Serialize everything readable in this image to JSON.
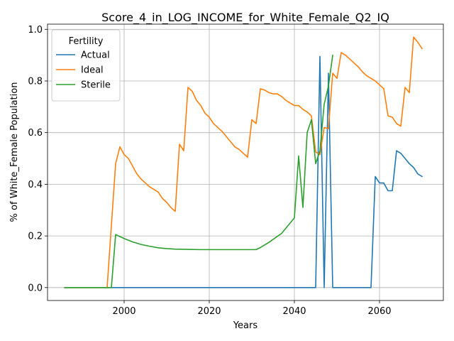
{
  "chart_data": {
    "type": "line",
    "title": "Score_4_in_LOG_INCOME_for_White_Female_Q2_IQ",
    "xlabel": "Years",
    "ylabel": "% of White_Female Population",
    "xlim": [
      1982,
      2075
    ],
    "ylim": [
      -0.05,
      1.02
    ],
    "xticks": [
      2000,
      2020,
      2040,
      2060
    ],
    "yticks": [
      0.0,
      0.2,
      0.4,
      0.6,
      0.8,
      1.0
    ],
    "xtick_labels": [
      "2000",
      "2020",
      "2040",
      "2060"
    ],
    "ytick_labels": [
      "0.0",
      "0.2",
      "0.4",
      "0.6",
      "0.8",
      "1.0"
    ],
    "grid": true,
    "legend": {
      "title": "Fertility",
      "placement": "top-left"
    },
    "series": [
      {
        "name": "Actual",
        "color": "#1f77b4",
        "x": [
          1986,
          1996,
          2000,
          2045,
          2046,
          2047,
          2048,
          2049,
          2058,
          2059,
          2060,
          2061,
          2062,
          2063,
          2064,
          2065,
          2066,
          2067,
          2068,
          2069,
          2070
        ],
        "y": [
          0,
          0,
          0,
          0,
          0.895,
          0,
          0.83,
          0,
          0,
          0.43,
          0.405,
          0.405,
          0.375,
          0.375,
          0.53,
          0.52,
          0.5,
          0.48,
          0.465,
          0.44,
          0.43
        ]
      },
      {
        "name": "Ideal",
        "color": "#ff7f0e",
        "x": [
          1986,
          1996,
          1998,
          1999,
          2000,
          2001,
          2002,
          2003,
          2004,
          2005,
          2006,
          2007,
          2008,
          2009,
          2010,
          2011,
          2012,
          2013,
          2014,
          2015,
          2016,
          2017,
          2018,
          2019,
          2020,
          2021,
          2022,
          2023,
          2024,
          2025,
          2026,
          2027,
          2028,
          2029,
          2030,
          2031,
          2032,
          2033,
          2034,
          2035,
          2036,
          2037,
          2038,
          2039,
          2040,
          2041,
          2042,
          2043,
          2044,
          2045,
          2046,
          2047,
          2048,
          2049,
          2050,
          2051,
          2052,
          2053,
          2054,
          2055,
          2056,
          2057,
          2058,
          2059,
          2060,
          2061,
          2062,
          2063,
          2064,
          2065,
          2066,
          2067,
          2068,
          2069,
          2070
        ],
        "y": [
          0,
          0,
          0.48,
          0.545,
          0.515,
          0.5,
          0.47,
          0.44,
          0.42,
          0.405,
          0.39,
          0.38,
          0.37,
          0.345,
          0.33,
          0.31,
          0.295,
          0.555,
          0.53,
          0.775,
          0.76,
          0.725,
          0.705,
          0.675,
          0.66,
          0.635,
          0.62,
          0.605,
          0.585,
          0.565,
          0.545,
          0.535,
          0.52,
          0.505,
          0.65,
          0.635,
          0.77,
          0.765,
          0.755,
          0.75,
          0.75,
          0.74,
          0.725,
          0.715,
          0.705,
          0.705,
          0.69,
          0.68,
          0.665,
          0.525,
          0.515,
          0.62,
          0.615,
          0.83,
          0.81,
          0.91,
          0.9,
          0.885,
          0.87,
          0.855,
          0.835,
          0.82,
          0.81,
          0.8,
          0.785,
          0.77,
          0.665,
          0.66,
          0.635,
          0.625,
          0.775,
          0.755,
          0.97,
          0.95,
          0.925
        ]
      },
      {
        "name": "Sterile",
        "color": "#2ca02c",
        "x": [
          1986,
          1997,
          1998,
          2000,
          2002,
          2004,
          2006,
          2008,
          2010,
          2012,
          2015,
          2018,
          2020,
          2025,
          2030,
          2031,
          2032,
          2034,
          2037,
          2040,
          2041,
          2042,
          2043,
          2044,
          2045,
          2046,
          2047,
          2048,
          2049
        ],
        "y": [
          0,
          0,
          0.205,
          0.19,
          0.177,
          0.167,
          0.16,
          0.154,
          0.151,
          0.149,
          0.148,
          0.147,
          0.147,
          0.147,
          0.147,
          0.147,
          0.155,
          0.175,
          0.21,
          0.27,
          0.51,
          0.31,
          0.6,
          0.65,
          0.48,
          0.53,
          0.71,
          0.78,
          0.9
        ]
      }
    ]
  }
}
